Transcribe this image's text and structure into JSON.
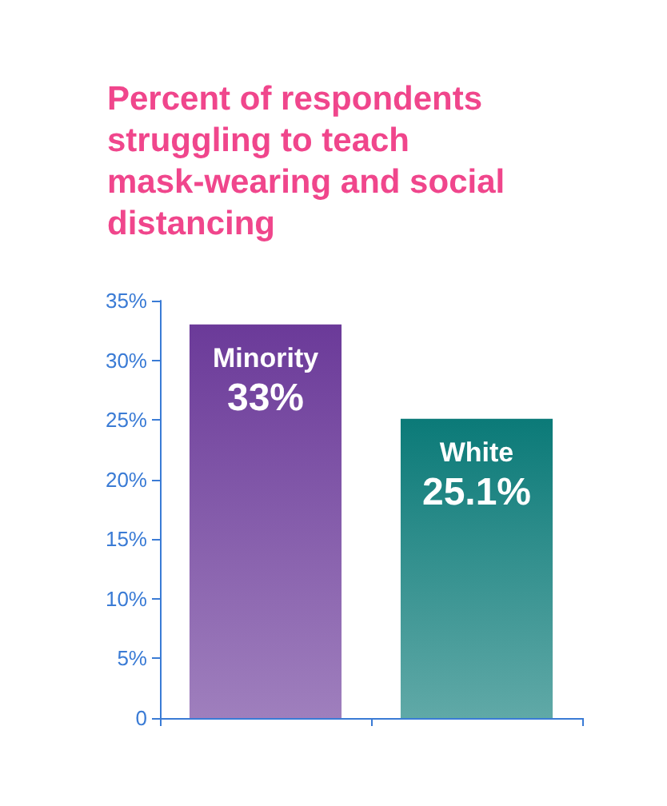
{
  "chart_data": {
    "type": "bar",
    "title": "Percent of respondents struggling to teach mask-wearing and social distancing",
    "categories": [
      "Minority",
      "White"
    ],
    "values": [
      33,
      25.1
    ],
    "colors": [
      "#6b3a99",
      "#0b7a78"
    ],
    "value_labels": [
      "33%",
      "25.1%"
    ],
    "ylim": [
      0,
      35
    ],
    "yticks": [
      {
        "value": 0,
        "label": "0"
      },
      {
        "value": 5,
        "label": "5%"
      },
      {
        "value": 10,
        "label": "10%"
      },
      {
        "value": 15,
        "label": "15%"
      },
      {
        "value": 20,
        "label": "20%"
      },
      {
        "value": 25,
        "label": "25%"
      },
      {
        "value": 30,
        "label": "30%"
      },
      {
        "value": 35,
        "label": "35%"
      }
    ],
    "grid": false
  }
}
